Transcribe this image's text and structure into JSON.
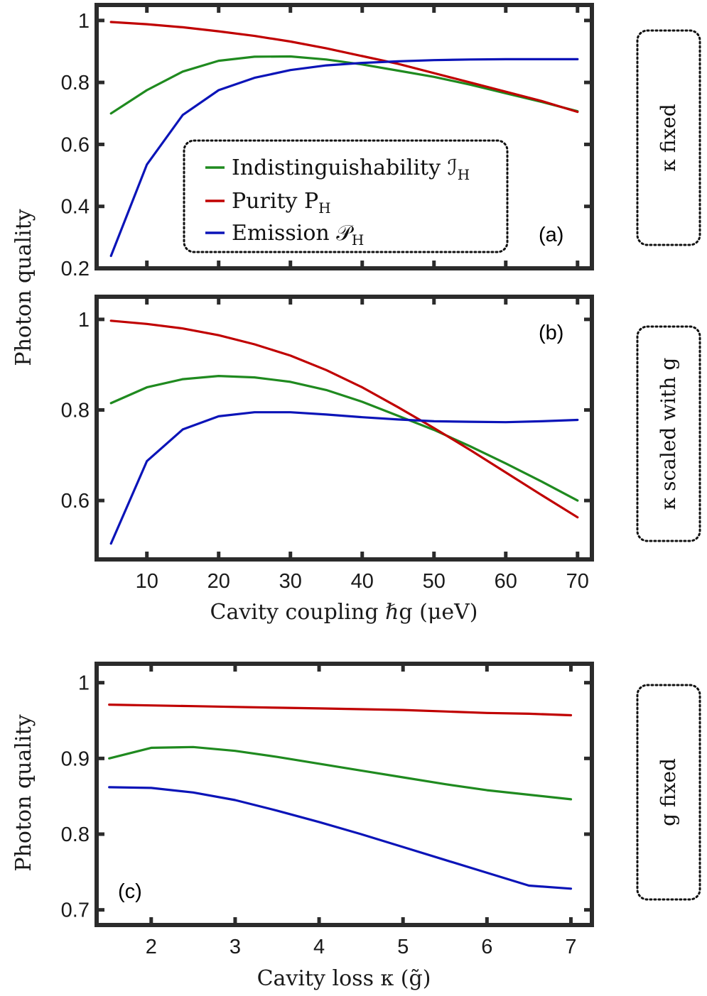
{
  "colors": {
    "indist": "#1f8a1f",
    "purity": "#c00000",
    "emission": "#0b14b8",
    "axis": "#2b2b2b"
  },
  "chart_data": [
    {
      "id": "a",
      "type": "line",
      "panel_label": "(a)",
      "side_label": "κ fixed",
      "xlim": [
        3,
        72
      ],
      "ylim": [
        0.2,
        1.05
      ],
      "yticks": [
        0.2,
        0.4,
        0.6,
        0.8,
        1
      ],
      "ytick_labels": [
        "0.2",
        "0.4",
        "0.6",
        "0.8",
        "1"
      ],
      "xticks": [
        10,
        20,
        30,
        40,
        50,
        60,
        70
      ],
      "x": [
        5,
        10,
        15,
        20,
        25,
        30,
        35,
        40,
        45,
        50,
        55,
        60,
        65,
        70
      ],
      "series": [
        {
          "key": "indist",
          "name": "Indistinguishability ℐH",
          "values": [
            0.7,
            0.775,
            0.835,
            0.87,
            0.883,
            0.884,
            0.874,
            0.858,
            0.838,
            0.818,
            0.793,
            0.765,
            0.737,
            0.707
          ]
        },
        {
          "key": "purity",
          "name": "Purity PH",
          "values": [
            0.995,
            0.988,
            0.978,
            0.965,
            0.95,
            0.932,
            0.91,
            0.885,
            0.86,
            0.83,
            0.8,
            0.77,
            0.74,
            0.705
          ]
        },
        {
          "key": "emission",
          "name": "Emission 𝒫H",
          "values": [
            0.24,
            0.535,
            0.695,
            0.775,
            0.815,
            0.84,
            0.855,
            0.863,
            0.868,
            0.872,
            0.874,
            0.875,
            0.875,
            0.875
          ]
        }
      ],
      "legend": [
        {
          "key": "indist",
          "text": "Indistinguishability ℐ",
          "sub": "H"
        },
        {
          "key": "purity",
          "text": "Purity P",
          "sub": "H"
        },
        {
          "key": "emission",
          "text": "Emission 𝒫",
          "sub": "H"
        }
      ]
    },
    {
      "id": "b",
      "type": "line",
      "panel_label": "(b)",
      "side_label": "κ scaled with g",
      "xlim": [
        3,
        72
      ],
      "ylim": [
        0.47,
        1.05
      ],
      "yticks": [
        0.6,
        0.8,
        1
      ],
      "ytick_labels": [
        "0.6",
        "0.8",
        "1"
      ],
      "xticks": [
        10,
        20,
        30,
        40,
        50,
        60,
        70
      ],
      "xtick_labels": [
        "10",
        "20",
        "30",
        "40",
        "50",
        "60",
        "70"
      ],
      "xlabel": "Cavity coupling ℏg (μeV)",
      "x": [
        5,
        10,
        15,
        20,
        25,
        30,
        35,
        40,
        45,
        50,
        55,
        60,
        65,
        70
      ],
      "series": [
        {
          "key": "indist",
          "name": "Indistinguishability",
          "values": [
            0.815,
            0.85,
            0.868,
            0.875,
            0.872,
            0.862,
            0.844,
            0.818,
            0.787,
            0.756,
            0.72,
            0.682,
            0.642,
            0.6
          ]
        },
        {
          "key": "purity",
          "name": "Purity",
          "values": [
            0.997,
            0.99,
            0.98,
            0.965,
            0.945,
            0.92,
            0.888,
            0.85,
            0.806,
            0.76,
            0.712,
            0.662,
            0.612,
            0.563
          ]
        },
        {
          "key": "emission",
          "name": "Emission",
          "values": [
            0.505,
            0.687,
            0.757,
            0.786,
            0.795,
            0.795,
            0.79,
            0.784,
            0.779,
            0.775,
            0.774,
            0.773,
            0.775,
            0.778
          ]
        }
      ]
    },
    {
      "id": "c",
      "type": "line",
      "panel_label": "(c)",
      "side_label": "g fixed",
      "xlim": [
        1.35,
        7.25
      ],
      "ylim": [
        0.68,
        1.025
      ],
      "yticks": [
        0.7,
        0.8,
        0.9,
        1
      ],
      "ytick_labels": [
        "0.7",
        "0.8",
        "0.9",
        "1"
      ],
      "xticks": [
        2,
        3,
        4,
        5,
        6,
        7
      ],
      "xtick_labels": [
        "2",
        "3",
        "4",
        "5",
        "6",
        "7"
      ],
      "xlabel": "Cavity loss κ (g̃)",
      "x": [
        1.5,
        2,
        2.5,
        3,
        3.5,
        4,
        4.5,
        5,
        5.5,
        6,
        6.5,
        7
      ],
      "series": [
        {
          "key": "indist",
          "name": "Indistinguishability",
          "values": [
            0.9,
            0.914,
            0.915,
            0.91,
            0.902,
            0.893,
            0.884,
            0.875,
            0.866,
            0.858,
            0.852,
            0.846
          ]
        },
        {
          "key": "purity",
          "name": "Purity",
          "values": [
            0.971,
            0.97,
            0.969,
            0.968,
            0.967,
            0.966,
            0.965,
            0.964,
            0.962,
            0.96,
            0.959,
            0.957
          ]
        },
        {
          "key": "emission",
          "name": "Emission",
          "values": [
            0.862,
            0.861,
            0.855,
            0.845,
            0.831,
            0.816,
            0.8,
            0.783,
            0.766,
            0.749,
            0.732,
            0.728
          ]
        }
      ]
    }
  ],
  "ylabel": "Photon quality"
}
